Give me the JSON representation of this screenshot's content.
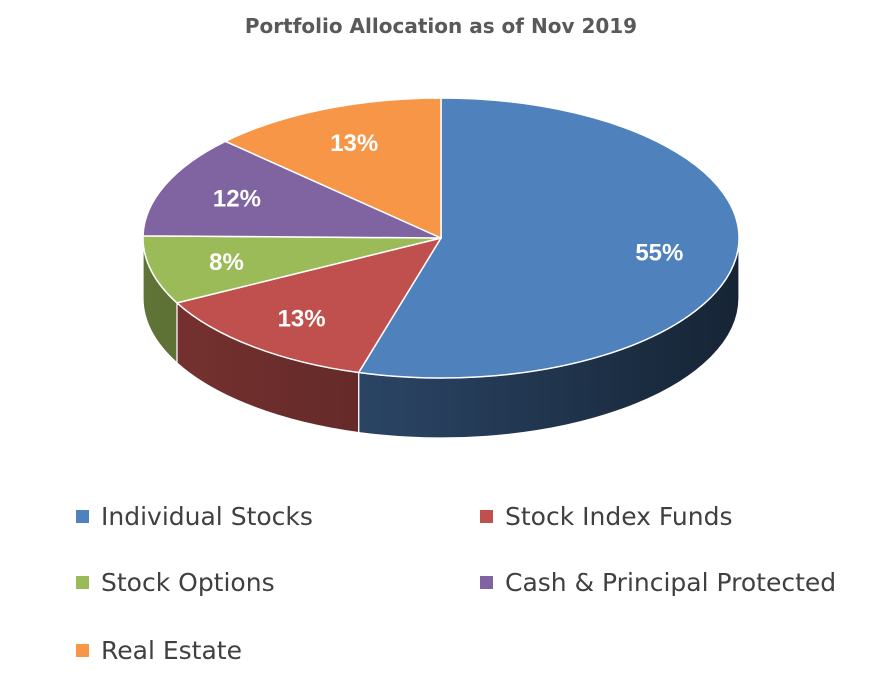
{
  "chart_data": {
    "type": "pie",
    "title": "Portfolio Allocation as of Nov 2019",
    "slices": [
      {
        "label": "Individual Stocks",
        "value": 55,
        "display": "55%",
        "color": "#4f81bd"
      },
      {
        "label": "Stock Index Funds",
        "value": 13,
        "display": "13%",
        "color": "#c0504d"
      },
      {
        "label": "Stock Options",
        "value": 8,
        "display": "8%",
        "color": "#9bbb59"
      },
      {
        "label": "Cash & Principal Protected",
        "value": 12,
        "display": "12%",
        "color": "#8064a2"
      },
      {
        "label": "Real Estate",
        "value": 13,
        "display": "13%",
        "color": "#f79646"
      }
    ],
    "legend_position": "bottom",
    "three_d": true
  }
}
